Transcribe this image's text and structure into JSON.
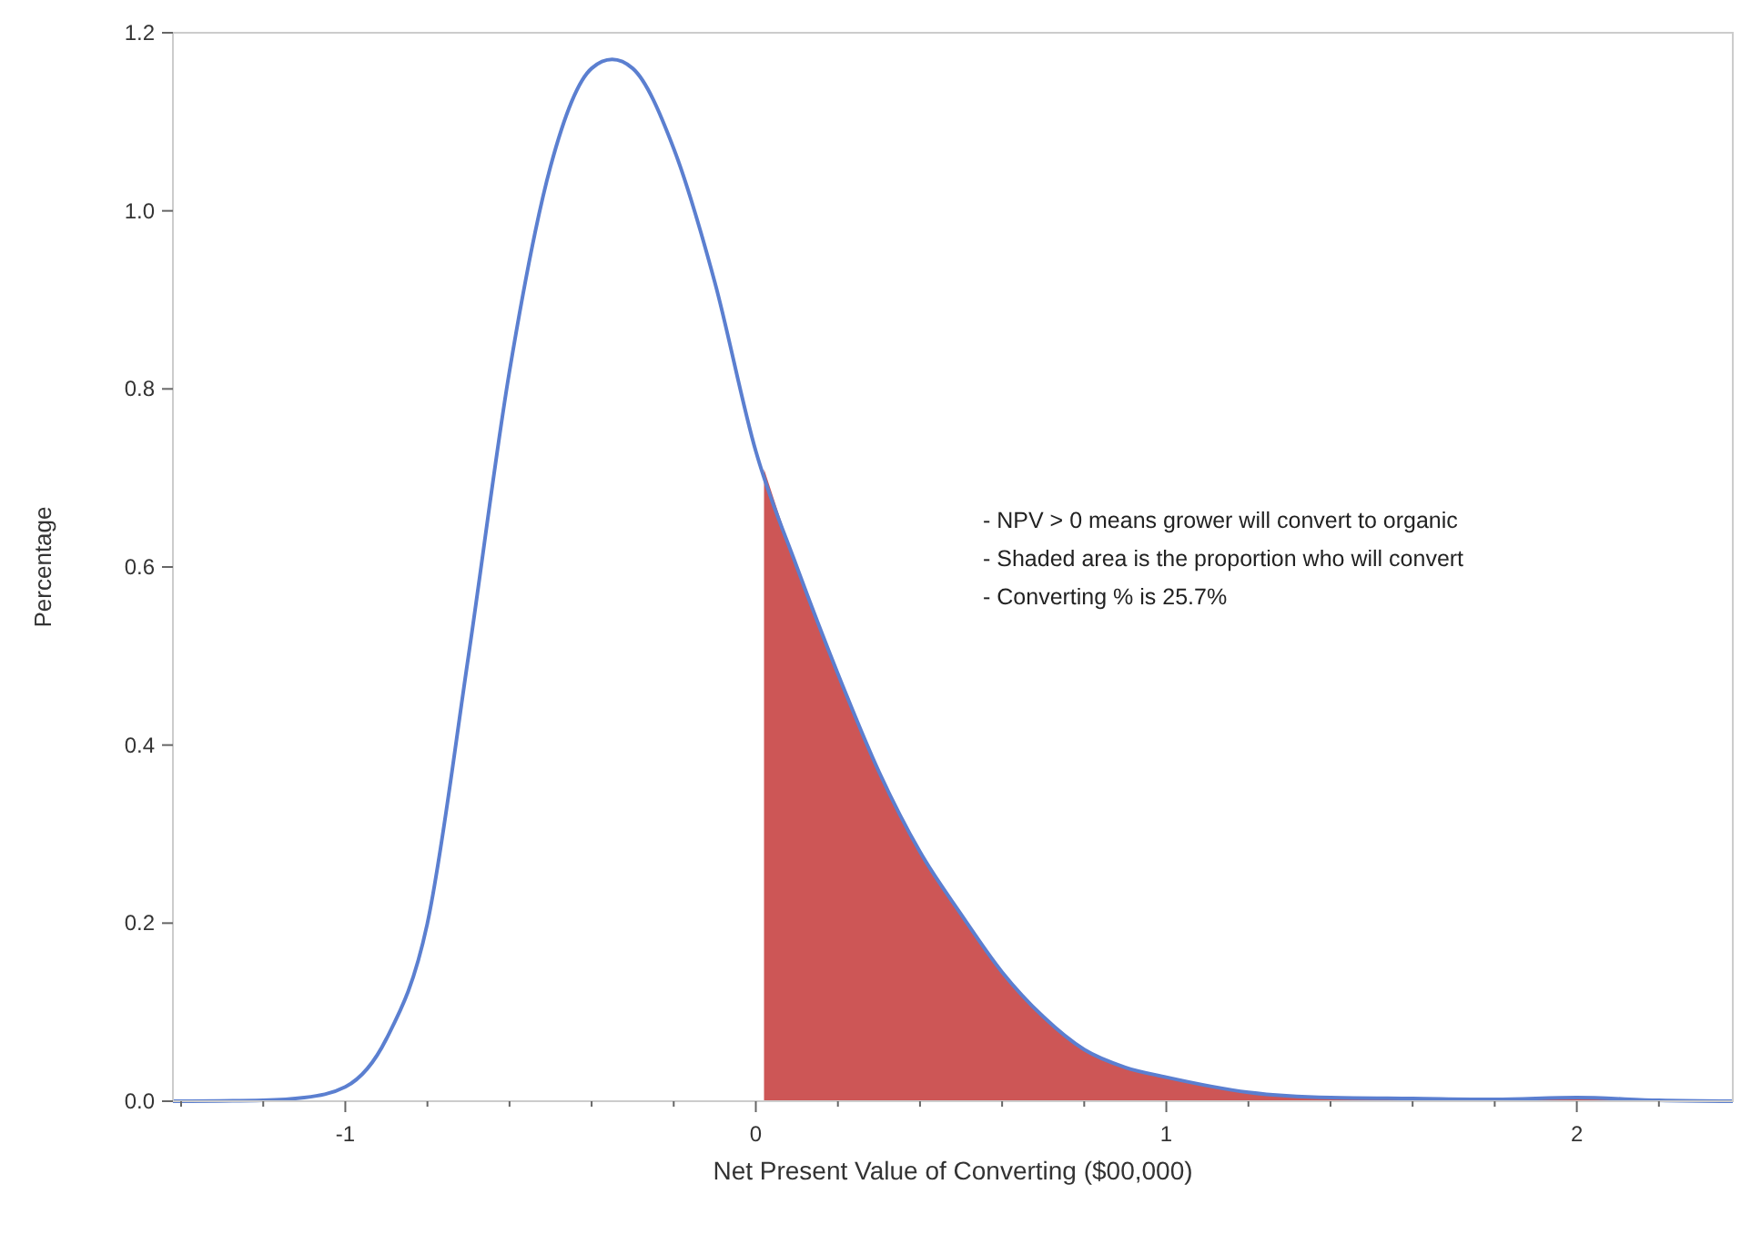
{
  "chart_data": {
    "type": "line",
    "xlabel": "Net Present Value of Converting ($00,000)",
    "ylabel": "Percentage",
    "xlim": [
      -1.42,
      2.38
    ],
    "ylim": [
      0,
      1.2
    ],
    "xticks": [
      {
        "value": -1.4,
        "label": null
      },
      {
        "value": -1.2,
        "label": null
      },
      -1,
      {
        "value": -0.8,
        "label": null
      },
      {
        "value": -0.6,
        "label": null
      },
      {
        "value": -0.4,
        "label": null
      },
      {
        "value": -0.2,
        "label": null
      },
      0,
      {
        "value": 0.2,
        "label": null
      },
      {
        "value": 0.4,
        "label": null
      },
      {
        "value": 0.6,
        "label": null
      },
      {
        "value": 0.8,
        "label": null
      },
      1,
      {
        "value": 1.2,
        "label": null
      },
      {
        "value": 1.4,
        "label": null
      },
      {
        "value": 1.6,
        "label": null
      },
      {
        "value": 1.8,
        "label": null
      },
      2,
      {
        "value": 2.2,
        "label": null
      }
    ],
    "yticks": [
      {
        "value": 0,
        "label": "0.0"
      },
      {
        "value": 0.2,
        "label": "0.2"
      },
      {
        "value": 0.4,
        "label": "0.4"
      },
      {
        "value": 0.6,
        "label": "0.6"
      },
      {
        "value": 0.8,
        "label": "0.8"
      },
      {
        "value": 1,
        "label": "1.0"
      },
      {
        "value": 1.2,
        "label": "1.2"
      }
    ],
    "grid": false,
    "marker": "none",
    "line_style": "solid",
    "series": [
      {
        "type": "area",
        "color": "#cd5656",
        "x": [
          0.02,
          0.1,
          0.2,
          0.3,
          0.4,
          0.5,
          0.6,
          0.7,
          0.8,
          0.9,
          1.0,
          1.2,
          1.4,
          1.6,
          1.8,
          2.0,
          2.2,
          2.38
        ],
        "values": [
          0.71,
          0.6,
          0.48,
          0.37,
          0.28,
          0.21,
          0.145,
          0.095,
          0.058,
          0.038,
          0.027,
          0.01,
          0.004,
          0.003,
          0.002,
          0.004,
          0.001,
          0
        ]
      },
      {
        "color": "#5b7fd0",
        "x": [
          -1.42,
          -1.2,
          -1.1,
          -1.0,
          -0.9,
          -0.8,
          -0.7,
          -0.6,
          -0.5,
          -0.4,
          -0.35,
          -0.3,
          -0.2,
          -0.1,
          0,
          0.1,
          0.2,
          0.3,
          0.4,
          0.5,
          0.6,
          0.7,
          0.8,
          0.9,
          1.0,
          1.2,
          1.4,
          1.6,
          1.8,
          2.0,
          2.2,
          2.38
        ],
        "values": [
          0,
          0.001,
          0.004,
          0.016,
          0.07,
          0.2,
          0.5,
          0.82,
          1.05,
          1.16,
          1.17,
          1.16,
          1.07,
          0.92,
          0.73,
          0.6,
          0.48,
          0.37,
          0.28,
          0.21,
          0.145,
          0.095,
          0.058,
          0.038,
          0.027,
          0.01,
          0.004,
          0.003,
          0.002,
          0.004,
          0.001,
          0
        ]
      }
    ],
    "annotations": [
      "- NPV > 0 means grower will convert to organic",
      "- Shaded area is the proportion who will convert",
      "- Converting % is 25.7%"
    ]
  }
}
